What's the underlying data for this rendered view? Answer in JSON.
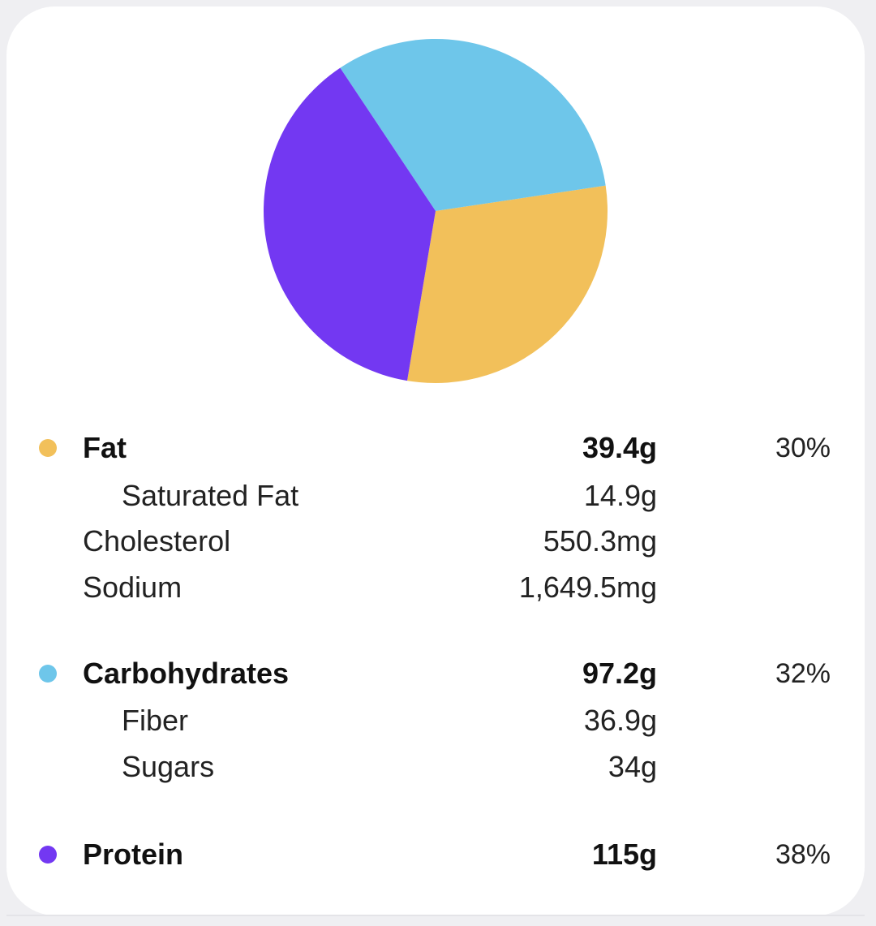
{
  "chart_data": {
    "type": "pie",
    "title": "",
    "categories": [
      "Fat",
      "Carbohydrates",
      "Protein"
    ],
    "values": [
      30,
      32,
      38
    ],
    "colors": [
      "#f2c05a",
      "#6ec6ea",
      "#7338f2"
    ],
    "start_angle_deg": 260.5,
    "direction": "counterclockwise"
  },
  "macros": [
    {
      "name": "Fat",
      "amount": "39.4g",
      "percent": "30%",
      "color": "#f2c05a",
      "subs": [
        {
          "name": "Saturated Fat",
          "amount": "14.9g",
          "indent": true
        },
        {
          "name": "Cholesterol",
          "amount": "550.3mg",
          "indent": false
        },
        {
          "name": "Sodium",
          "amount": "1,649.5mg",
          "indent": false
        }
      ]
    },
    {
      "name": "Carbohydrates",
      "amount": "97.2g",
      "percent": "32%",
      "color": "#6ec6ea",
      "subs": [
        {
          "name": "Fiber",
          "amount": "36.9g",
          "indent": true
        },
        {
          "name": "Sugars",
          "amount": "34g",
          "indent": true
        }
      ]
    },
    {
      "name": "Protein",
      "amount": "115g",
      "percent": "38%",
      "color": "#7338f2",
      "subs": []
    }
  ]
}
